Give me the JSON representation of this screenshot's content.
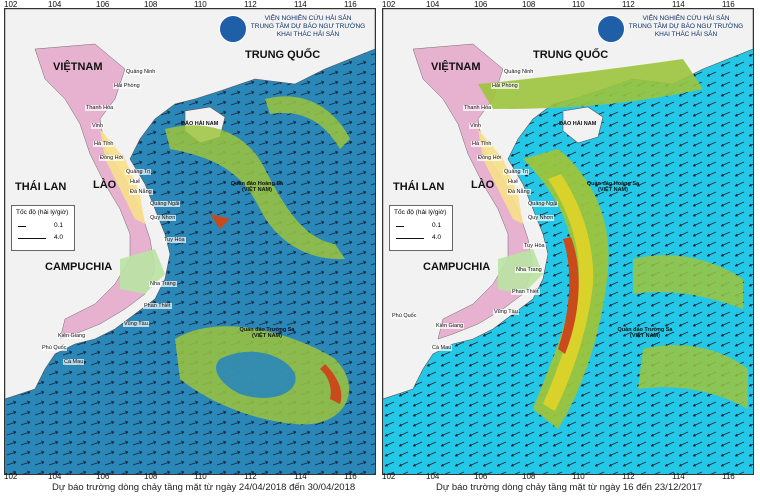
{
  "captions": {
    "left": "Dự báo trường dòng chảy tầng mặt từ ngày 24/04/2018 đến 30/04/2018",
    "right": "Dự báo trường dòng chảy tầng mặt từ ngày 16 đến 23/12/2017"
  },
  "institute": {
    "line1": "VIỆN NGHIÊN CỨU HẢI SẢN",
    "line2": "TRUNG TÂM DỰ BÁO NGƯ TRƯỜNG",
    "line3": "KHAI THÁC HẢI SẢN"
  },
  "axis": {
    "longitudes": [
      "102",
      "104",
      "106",
      "108",
      "110",
      "112",
      "114",
      "116"
    ],
    "latitudes": [
      "20",
      "18",
      "16",
      "14",
      "12",
      "10",
      "8"
    ]
  },
  "labels": {
    "vietnam": "VIỆTNAM",
    "china": "TRUNG QUỐC",
    "thailand": "THÁI LAN",
    "laos": "LÀO",
    "cambodia": "CAMPUCHIA",
    "hainan": "ĐẢO HẢI NAM",
    "paracel": "Quần đảo Hoàng Sa (VIỆT NAM)",
    "spratly": "Quần đảo Trường Sa (VIỆT NAM)",
    "phu_quoc": "Phú Quốc",
    "ca_mau": "Cà Mau",
    "kien_giang": "Kiên Giang",
    "quang_ninh": "Quảng Ninh",
    "hai_phong": "Hải Phòng",
    "thanh_hoa": "Thanh Hóa",
    "vinh": "Vinh",
    "ha_tinh": "Hà Tĩnh",
    "dong_hoi": "Đồng Hới",
    "quang_tri": "Quảng Trị",
    "hue": "Huế",
    "da_nang": "Đà Nẵng",
    "quang_ngai": "Quảng Ngãi",
    "quy_nhon": "Quy Nhơn",
    "tuy_hoa": "Tuy Hòa",
    "nha_trang": "Nha Trang",
    "phan_thiet": "Phan Thiết",
    "vung_tau": "Vũng Tàu"
  },
  "legend": {
    "title": "Tốc độ (hải lý/giờ)",
    "min": "0.1",
    "max": "4.0"
  },
  "colors": {
    "sea_left": "#2a87b8",
    "sea_right": "#25c7e6",
    "current_medium": "#9cc43c",
    "current_strong": "#d9d22a",
    "current_peak": "#c94a1b",
    "land": "#f2f2f2"
  }
}
